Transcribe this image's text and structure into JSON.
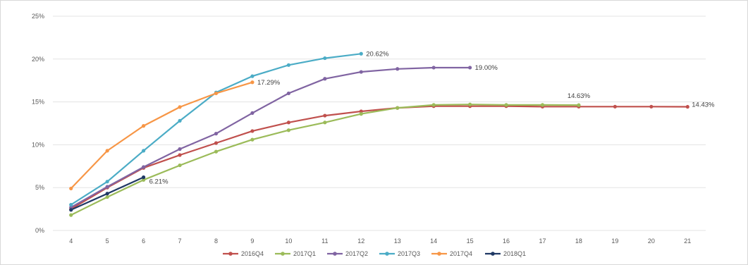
{
  "chart_data": {
    "type": "line",
    "title": "",
    "xlabel": "",
    "ylabel": "",
    "x": [
      4,
      5,
      6,
      7,
      8,
      9,
      10,
      11,
      12,
      13,
      14,
      15,
      16,
      17,
      18,
      19,
      20,
      21
    ],
    "x_tick_labels": [
      "4",
      "5",
      "6",
      "7",
      "8",
      "9",
      "10",
      "11",
      "12",
      "13",
      "14",
      "15",
      "16",
      "17",
      "18",
      "19",
      "20",
      "21"
    ],
    "ylim": [
      0,
      25
    ],
    "y_ticks": [
      0,
      5,
      10,
      15,
      20,
      25
    ],
    "y_tick_labels": [
      "0%",
      "5%",
      "10%",
      "15%",
      "20%",
      "25%"
    ],
    "grid": "horizontal",
    "legend_position": "bottom",
    "series": [
      {
        "name": "2016Q4",
        "color": "#c0504d",
        "x": [
          4,
          5,
          6,
          7,
          8,
          9,
          10,
          11,
          12,
          13,
          14,
          15,
          16,
          17,
          18,
          19,
          20,
          21
        ],
        "values": [
          2.5,
          5.0,
          7.3,
          8.8,
          10.2,
          11.6,
          12.6,
          13.4,
          13.9,
          14.3,
          14.5,
          14.5,
          14.5,
          14.45,
          14.45,
          14.45,
          14.45,
          14.43
        ]
      },
      {
        "name": "2017Q1",
        "color": "#9bbb59",
        "x": [
          4,
          5,
          6,
          7,
          8,
          9,
          10,
          11,
          12,
          13,
          14,
          15,
          16,
          17,
          18
        ],
        "values": [
          1.8,
          3.9,
          5.9,
          7.6,
          9.2,
          10.6,
          11.7,
          12.6,
          13.6,
          14.3,
          14.65,
          14.7,
          14.65,
          14.65,
          14.63
        ]
      },
      {
        "name": "2017Q2",
        "color": "#8064a2",
        "x": [
          4,
          5,
          6,
          7,
          8,
          9,
          10,
          11,
          12,
          13,
          14,
          15
        ],
        "values": [
          2.7,
          5.1,
          7.4,
          9.5,
          11.3,
          13.7,
          16.0,
          17.7,
          18.5,
          18.85,
          19.0,
          19.0
        ]
      },
      {
        "name": "2017Q3",
        "color": "#4bacc6",
        "x": [
          4,
          5,
          6,
          7,
          8,
          9,
          10,
          11,
          12
        ],
        "values": [
          3.0,
          5.7,
          9.3,
          12.8,
          16.1,
          18.0,
          19.3,
          20.1,
          20.62
        ]
      },
      {
        "name": "2017Q4",
        "color": "#f79646",
        "x": [
          4,
          5,
          6,
          7,
          8,
          9
        ],
        "values": [
          4.9,
          9.3,
          12.2,
          14.4,
          16.0,
          17.29
        ]
      },
      {
        "name": "2018Q1",
        "color": "#1f3864",
        "x": [
          4,
          5,
          6
        ],
        "values": [
          2.4,
          4.3,
          6.21
        ]
      }
    ],
    "annotations": [
      {
        "series": "2016Q4",
        "x": 21,
        "text": "14.43%"
      },
      {
        "series": "2017Q1",
        "x": 18,
        "text": "14.63%"
      },
      {
        "series": "2017Q2",
        "x": 15,
        "text": "19.00%"
      },
      {
        "series": "2017Q3",
        "x": 12,
        "text": "20.62%"
      },
      {
        "series": "2017Q4",
        "x": 9,
        "text": "17.29%"
      },
      {
        "series": "2018Q1",
        "x": 6,
        "text": "6.21%"
      }
    ]
  }
}
